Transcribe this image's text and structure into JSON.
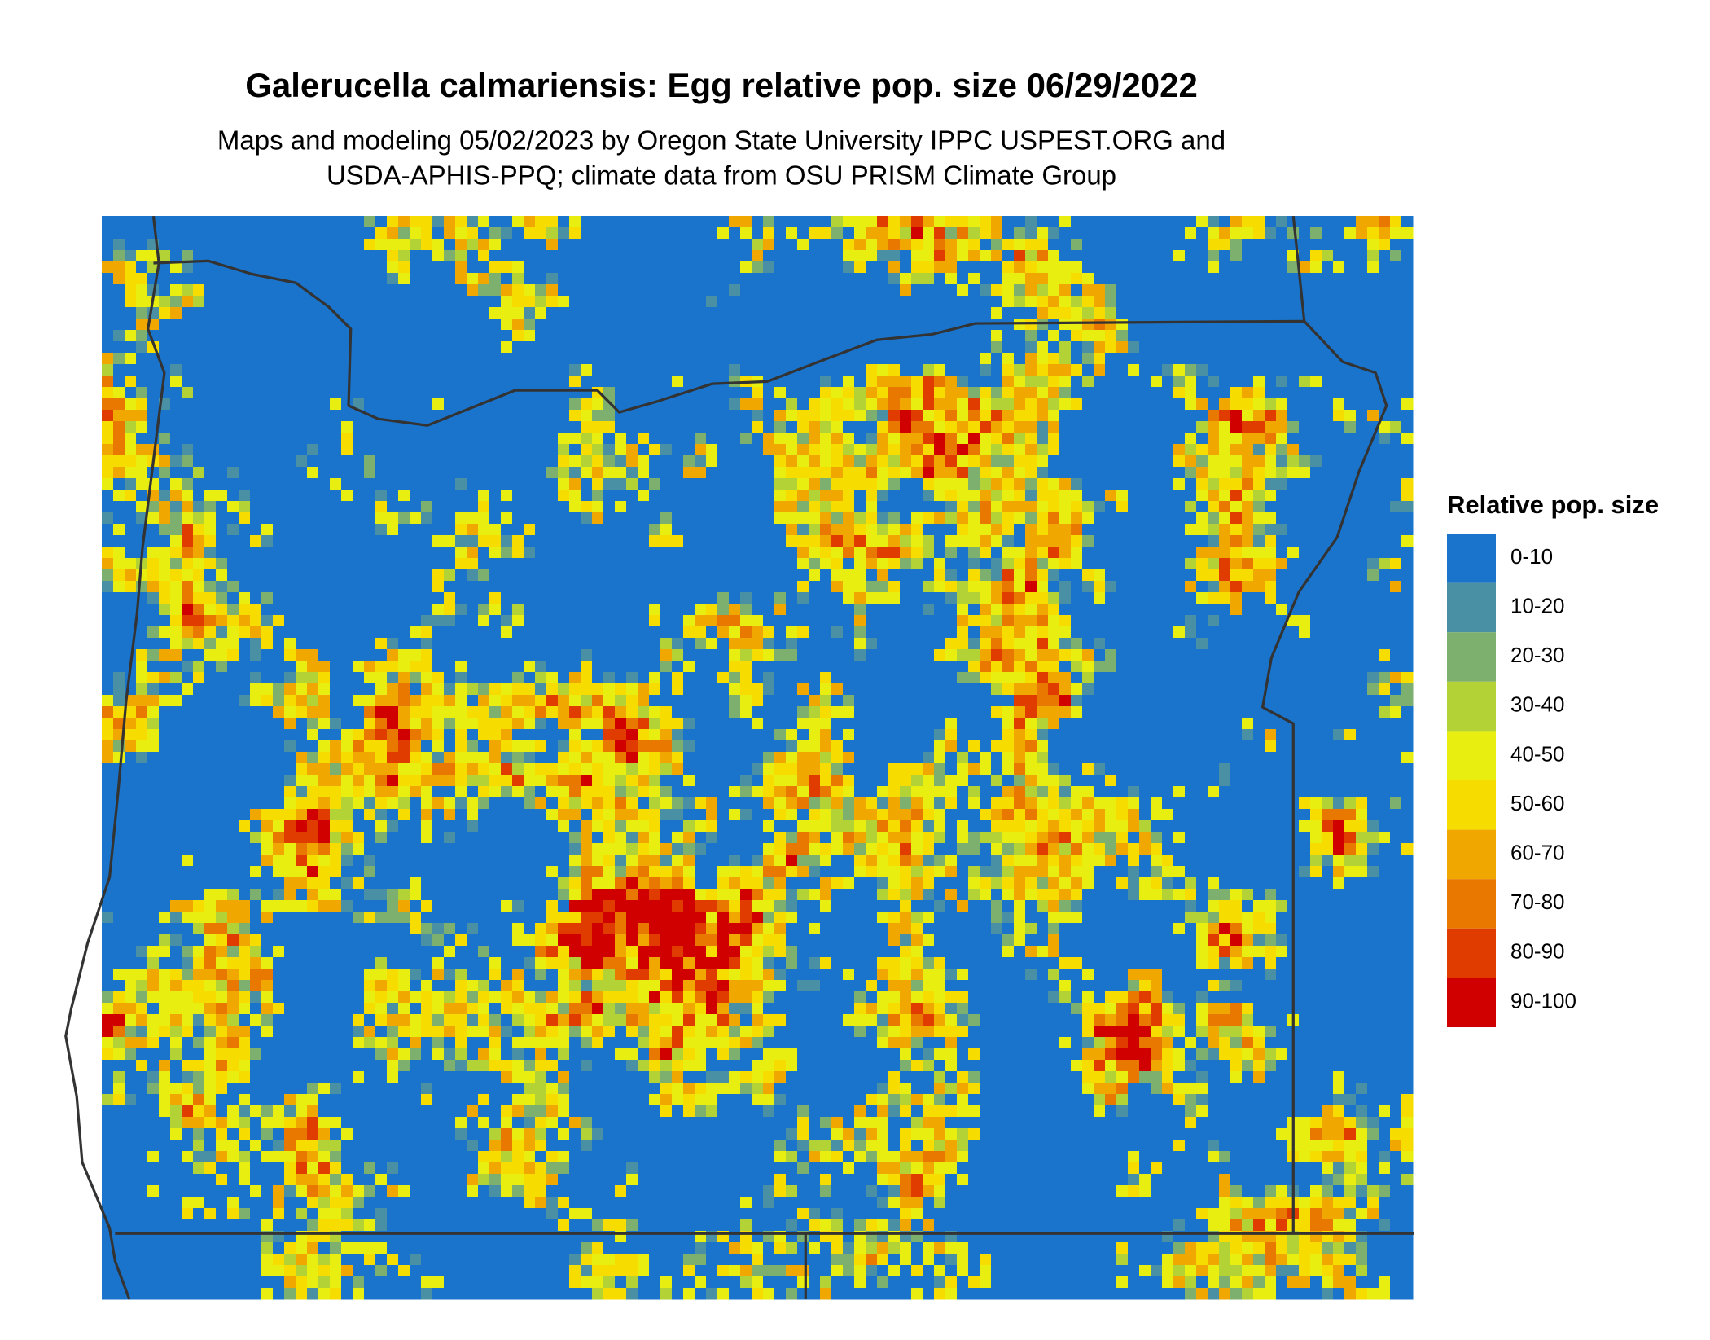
{
  "header": {
    "title": "Galerucella calmariensis: Egg relative pop. size 06/29/2022",
    "subtitle": [
      "Maps and modeling 05/02/2023 by Oregon State University IPPC USPEST.ORG and",
      "USDA-APHIS-PPQ; climate data from OSU PRISM Climate Group"
    ]
  },
  "legend": {
    "title": "Relative pop. size",
    "items": [
      {
        "label": "0-10",
        "color": "#1a74cc"
      },
      {
        "label": "10-20",
        "color": "#4a90a4"
      },
      {
        "label": "20-30",
        "color": "#7daf6e"
      },
      {
        "label": "30-40",
        "color": "#b2d235"
      },
      {
        "label": "40-50",
        "color": "#e8ee10"
      },
      {
        "label": "50-60",
        "color": "#f7dc00"
      },
      {
        "label": "60-70",
        "color": "#f0a800"
      },
      {
        "label": "70-80",
        "color": "#e87800"
      },
      {
        "label": "80-90",
        "color": "#e03c00"
      },
      {
        "label": "90-100",
        "color": "#d00000"
      }
    ]
  }
}
